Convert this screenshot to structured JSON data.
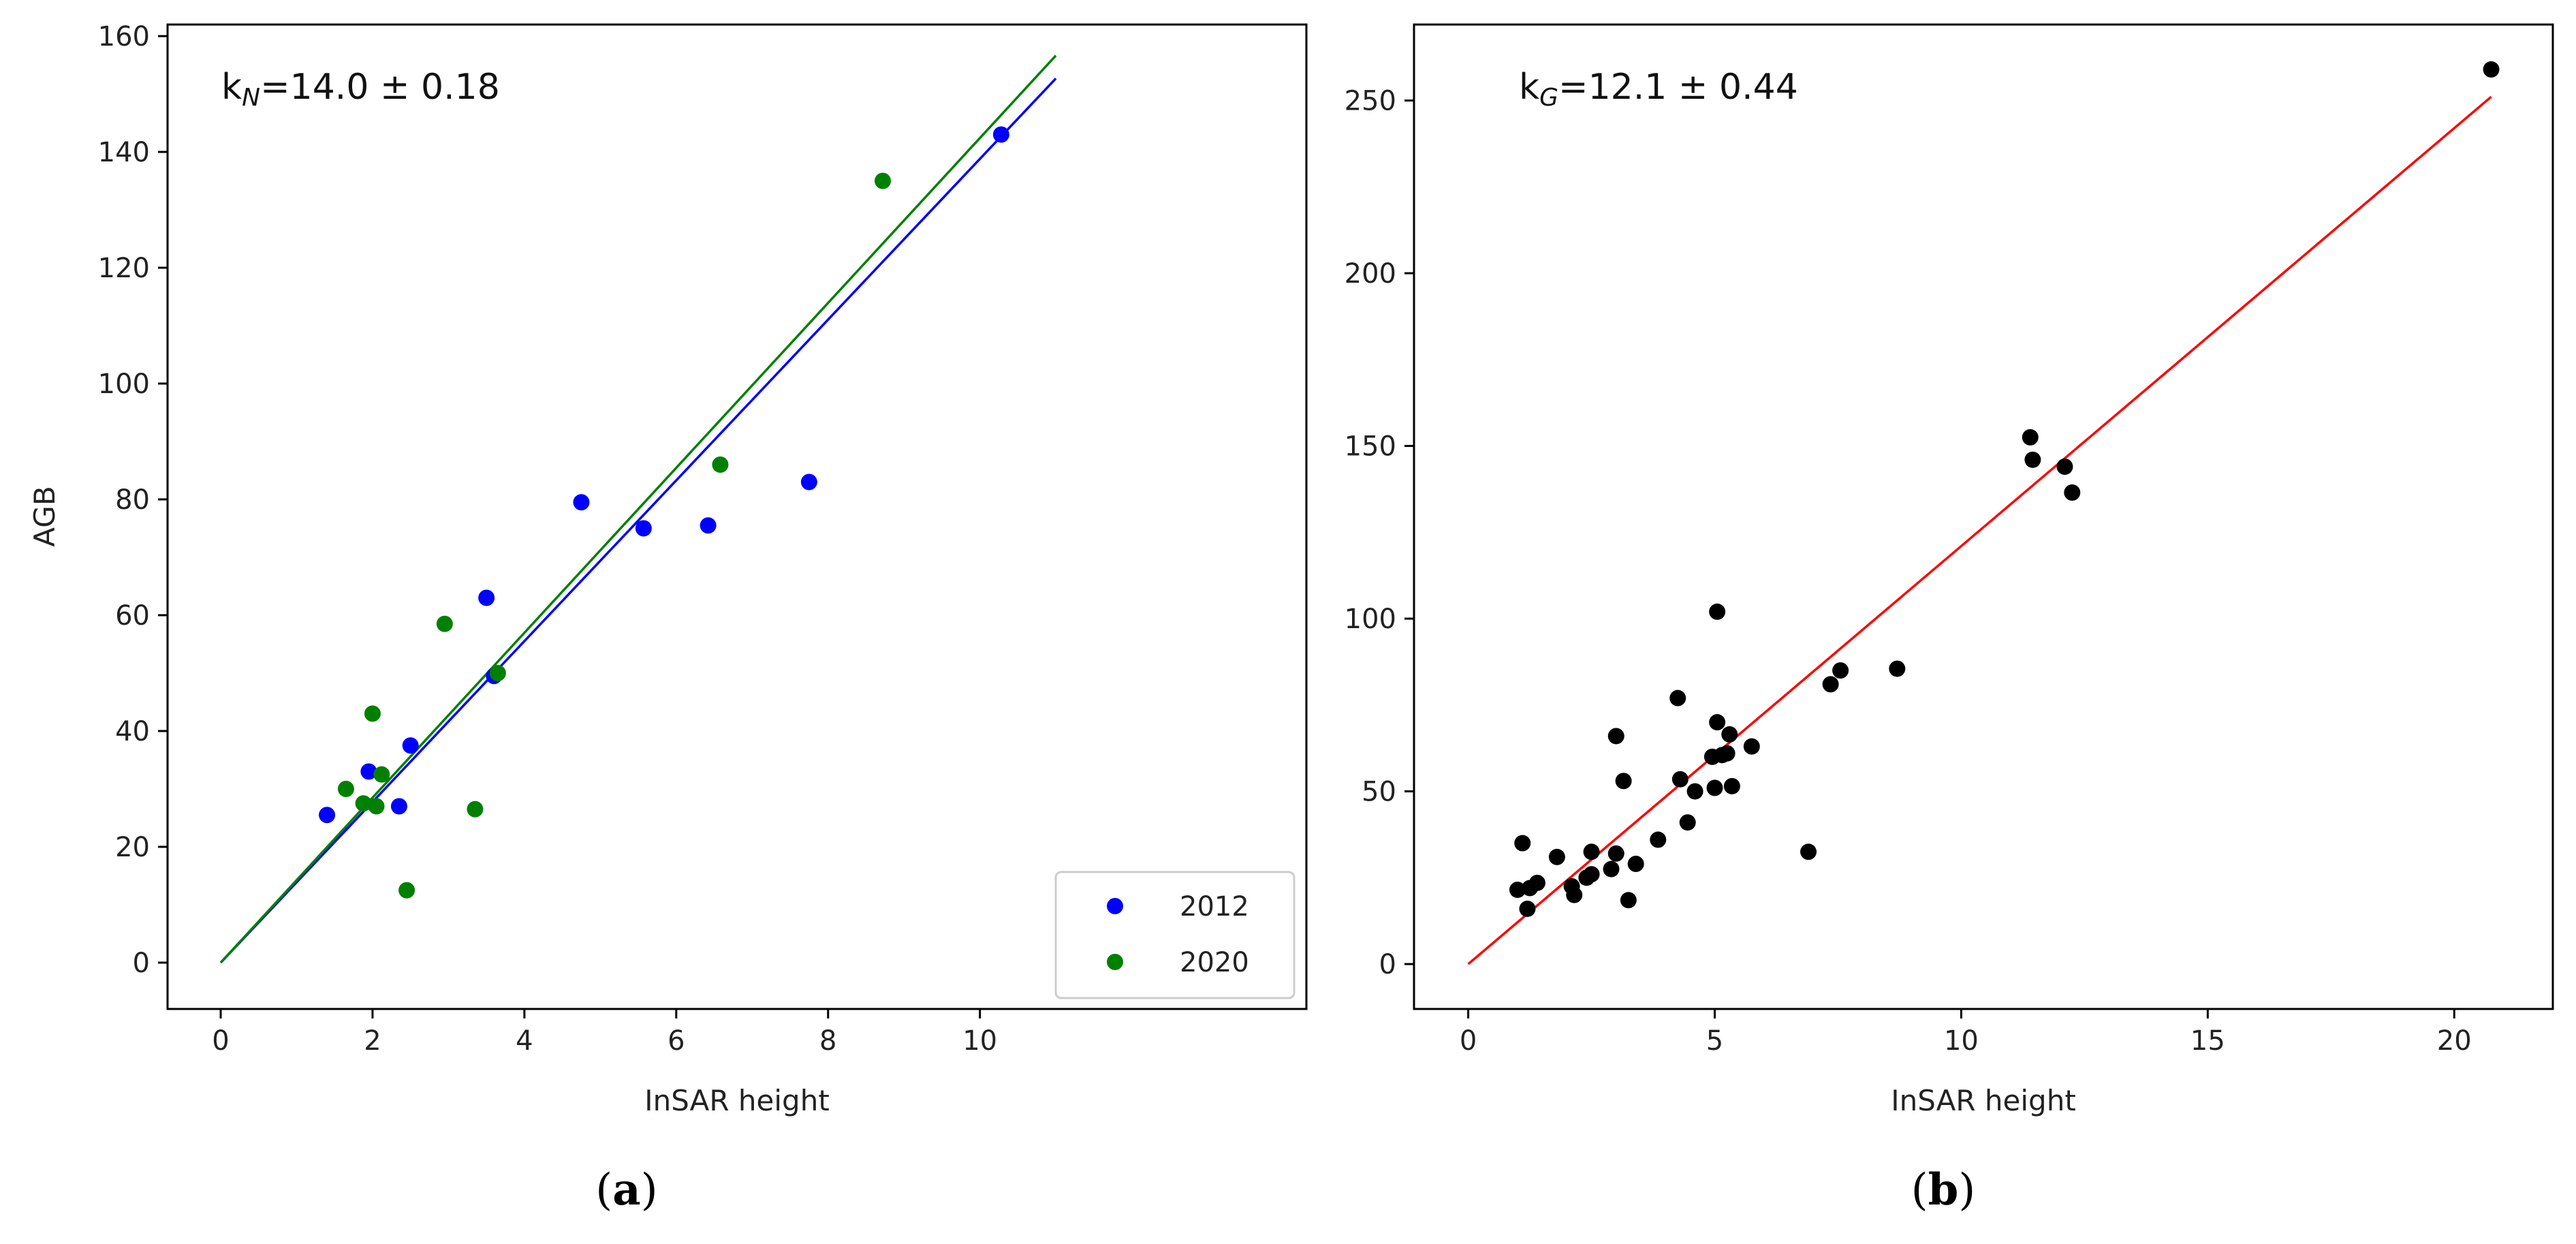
{
  "chart_data": [
    {
      "type": "scatter",
      "panel_label": "a",
      "xlabel": "InSAR height",
      "ylabel": "AGB",
      "xlim": [
        -0.7,
        14.3
      ],
      "ylim": [
        -8,
        162
      ],
      "xticks": [
        0,
        2,
        4,
        6,
        8,
        10
      ],
      "yticks": [
        0,
        20,
        40,
        60,
        80,
        100,
        120,
        140,
        160
      ],
      "annotation": {
        "k_base": "k",
        "k_sub": "N",
        "text": "=14.0 ± 0.18"
      },
      "legend": {
        "position": "lower-right"
      },
      "series": [
        {
          "name": "2012",
          "color": "#0000ff",
          "points": [
            [
              1.4,
              25.5
            ],
            [
              1.95,
              33.0
            ],
            [
              2.35,
              27.0
            ],
            [
              2.5,
              37.5
            ],
            [
              3.5,
              63.0
            ],
            [
              3.6,
              49.5
            ],
            [
              4.75,
              79.5
            ],
            [
              5.57,
              75.0
            ],
            [
              6.42,
              75.5
            ],
            [
              7.75,
              83.0
            ],
            [
              10.28,
              143.0
            ]
          ],
          "fit": {
            "slope": 13.88,
            "x_end": 11.0
          }
        },
        {
          "name": "2020",
          "color": "#008000",
          "points": [
            [
              1.65,
              30.0
            ],
            [
              1.88,
              27.5
            ],
            [
              2.0,
              43.0
            ],
            [
              2.05,
              27.0
            ],
            [
              2.12,
              32.5
            ],
            [
              2.45,
              12.5
            ],
            [
              2.95,
              58.5
            ],
            [
              3.35,
              26.5
            ],
            [
              3.65,
              50.0
            ],
            [
              6.58,
              86.0
            ],
            [
              8.72,
              135.0
            ]
          ],
          "fit": {
            "slope": 14.24,
            "x_end": 11.0
          }
        }
      ]
    },
    {
      "type": "scatter",
      "panel_label": "b",
      "xlabel": "InSAR height",
      "ylabel": "",
      "xlim": [
        -1.1,
        22.0
      ],
      "ylim": [
        -13,
        272
      ],
      "xticks": [
        0,
        5,
        10,
        15,
        20
      ],
      "yticks": [
        0,
        50,
        100,
        150,
        200,
        250
      ],
      "annotation": {
        "k_base": "k",
        "k_sub": "G",
        "text": "=12.1 ± 0.44"
      },
      "series": [
        {
          "name": "",
          "color": "#000000",
          "points": [
            [
              1.0,
              21.5
            ],
            [
              1.1,
              35.0
            ],
            [
              1.2,
              16.0
            ],
            [
              1.25,
              22.0
            ],
            [
              1.4,
              23.5
            ],
            [
              1.8,
              31.0
            ],
            [
              2.1,
              22.5
            ],
            [
              2.15,
              20.0
            ],
            [
              2.4,
              25.0
            ],
            [
              2.5,
              26.0
            ],
            [
              2.5,
              32.5
            ],
            [
              2.9,
              27.5
            ],
            [
              3.0,
              32.0
            ],
            [
              3.0,
              66.0
            ],
            [
              3.15,
              53.0
            ],
            [
              3.25,
              18.5
            ],
            [
              3.4,
              29.0
            ],
            [
              3.85,
              36.0
            ],
            [
              4.25,
              77.0
            ],
            [
              4.3,
              53.5
            ],
            [
              4.45,
              41.0
            ],
            [
              4.6,
              50.0
            ],
            [
              4.95,
              60.0
            ],
            [
              5.0,
              51.0
            ],
            [
              5.05,
              102.0
            ],
            [
              5.05,
              70.0
            ],
            [
              5.15,
              60.5
            ],
            [
              5.25,
              61.0
            ],
            [
              5.3,
              66.5
            ],
            [
              5.35,
              51.5
            ],
            [
              5.75,
              63.0
            ],
            [
              6.9,
              32.5
            ],
            [
              7.35,
              81.0
            ],
            [
              7.55,
              85.0
            ],
            [
              8.7,
              85.5
            ],
            [
              11.4,
              152.5
            ],
            [
              11.45,
              146.0
            ],
            [
              12.1,
              144.0
            ],
            [
              12.25,
              136.5
            ],
            [
              20.75,
              259.0
            ]
          ],
          "fit": {
            "slope": 12.1,
            "x_end": 20.75,
            "color": "#ff0000"
          }
        }
      ]
    }
  ]
}
